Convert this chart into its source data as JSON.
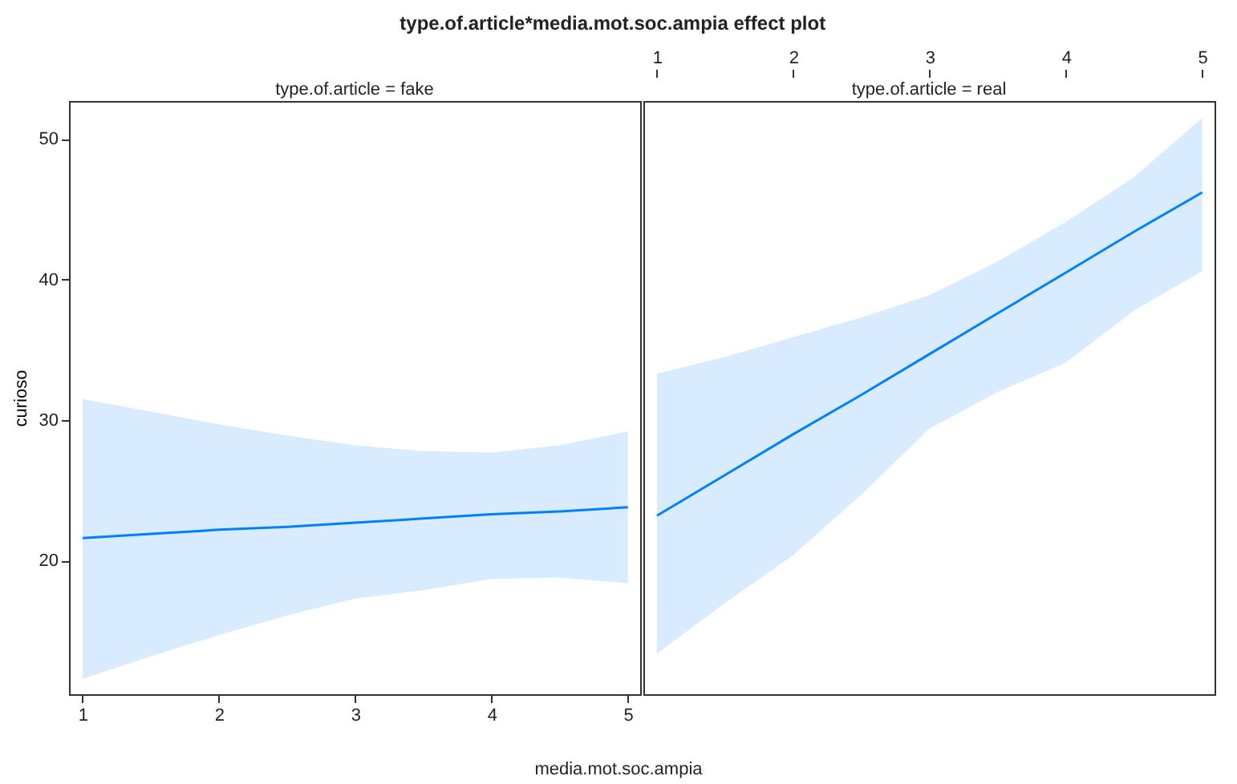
{
  "chart_data": [
    {
      "type": "line",
      "title": "type.of.article*media.mot.soc.ampia effect plot",
      "subtitle": "type.of.article = fake",
      "xlabel": "media.mot.soc.ampia",
      "ylabel": "curioso",
      "x": [
        1,
        1.5,
        2,
        2.5,
        3,
        3.5,
        4,
        4.5,
        5
      ],
      "xlim": [
        0.9,
        5.09
      ],
      "ylim": [
        10.5,
        52.7
      ],
      "xticks": [
        1,
        2,
        3,
        4,
        5
      ],
      "yticks": [
        20,
        30,
        40,
        50
      ],
      "series": [
        {
          "color": "#0080ff",
          "values": [
            21.6,
            21.9,
            22.2,
            22.4,
            22.7,
            23.0,
            23.3,
            23.5,
            23.8
          ],
          "lower": [
            11.6,
            13.2,
            14.7,
            16.1,
            17.3,
            17.9,
            18.7,
            18.8,
            18.4
          ],
          "upper": [
            31.5,
            30.6,
            29.7,
            28.9,
            28.2,
            27.8,
            27.7,
            28.2,
            29.2
          ]
        }
      ]
    },
    {
      "type": "line",
      "subtitle": "type.of.article = real",
      "x": [
        1,
        1.5,
        2,
        2.5,
        3,
        3.5,
        4,
        4.5,
        5
      ],
      "xlim": [
        0.9,
        5.09
      ],
      "ylim": [
        10.5,
        52.7
      ],
      "x2lim": [
        0.9,
        5.09
      ],
      "x2ticks": [
        1,
        2,
        3,
        4,
        5
      ],
      "yticks": [
        20,
        30,
        40,
        50
      ],
      "tick_labels": "x",
      "series": [
        {
          "color": "#0080ff",
          "values": [
            23.2,
            26.1,
            29.0,
            31.8,
            34.7,
            37.6,
            40.5,
            43.4,
            46.2
          ],
          "lower": [
            13.4,
            17.0,
            20.4,
            24.7,
            29.4,
            32.0,
            34.1,
            37.8,
            40.6
          ],
          "upper": [
            33.3,
            34.5,
            35.9,
            37.3,
            38.9,
            41.3,
            44.1,
            47.3,
            51.5
          ]
        }
      ]
    }
  ]
}
